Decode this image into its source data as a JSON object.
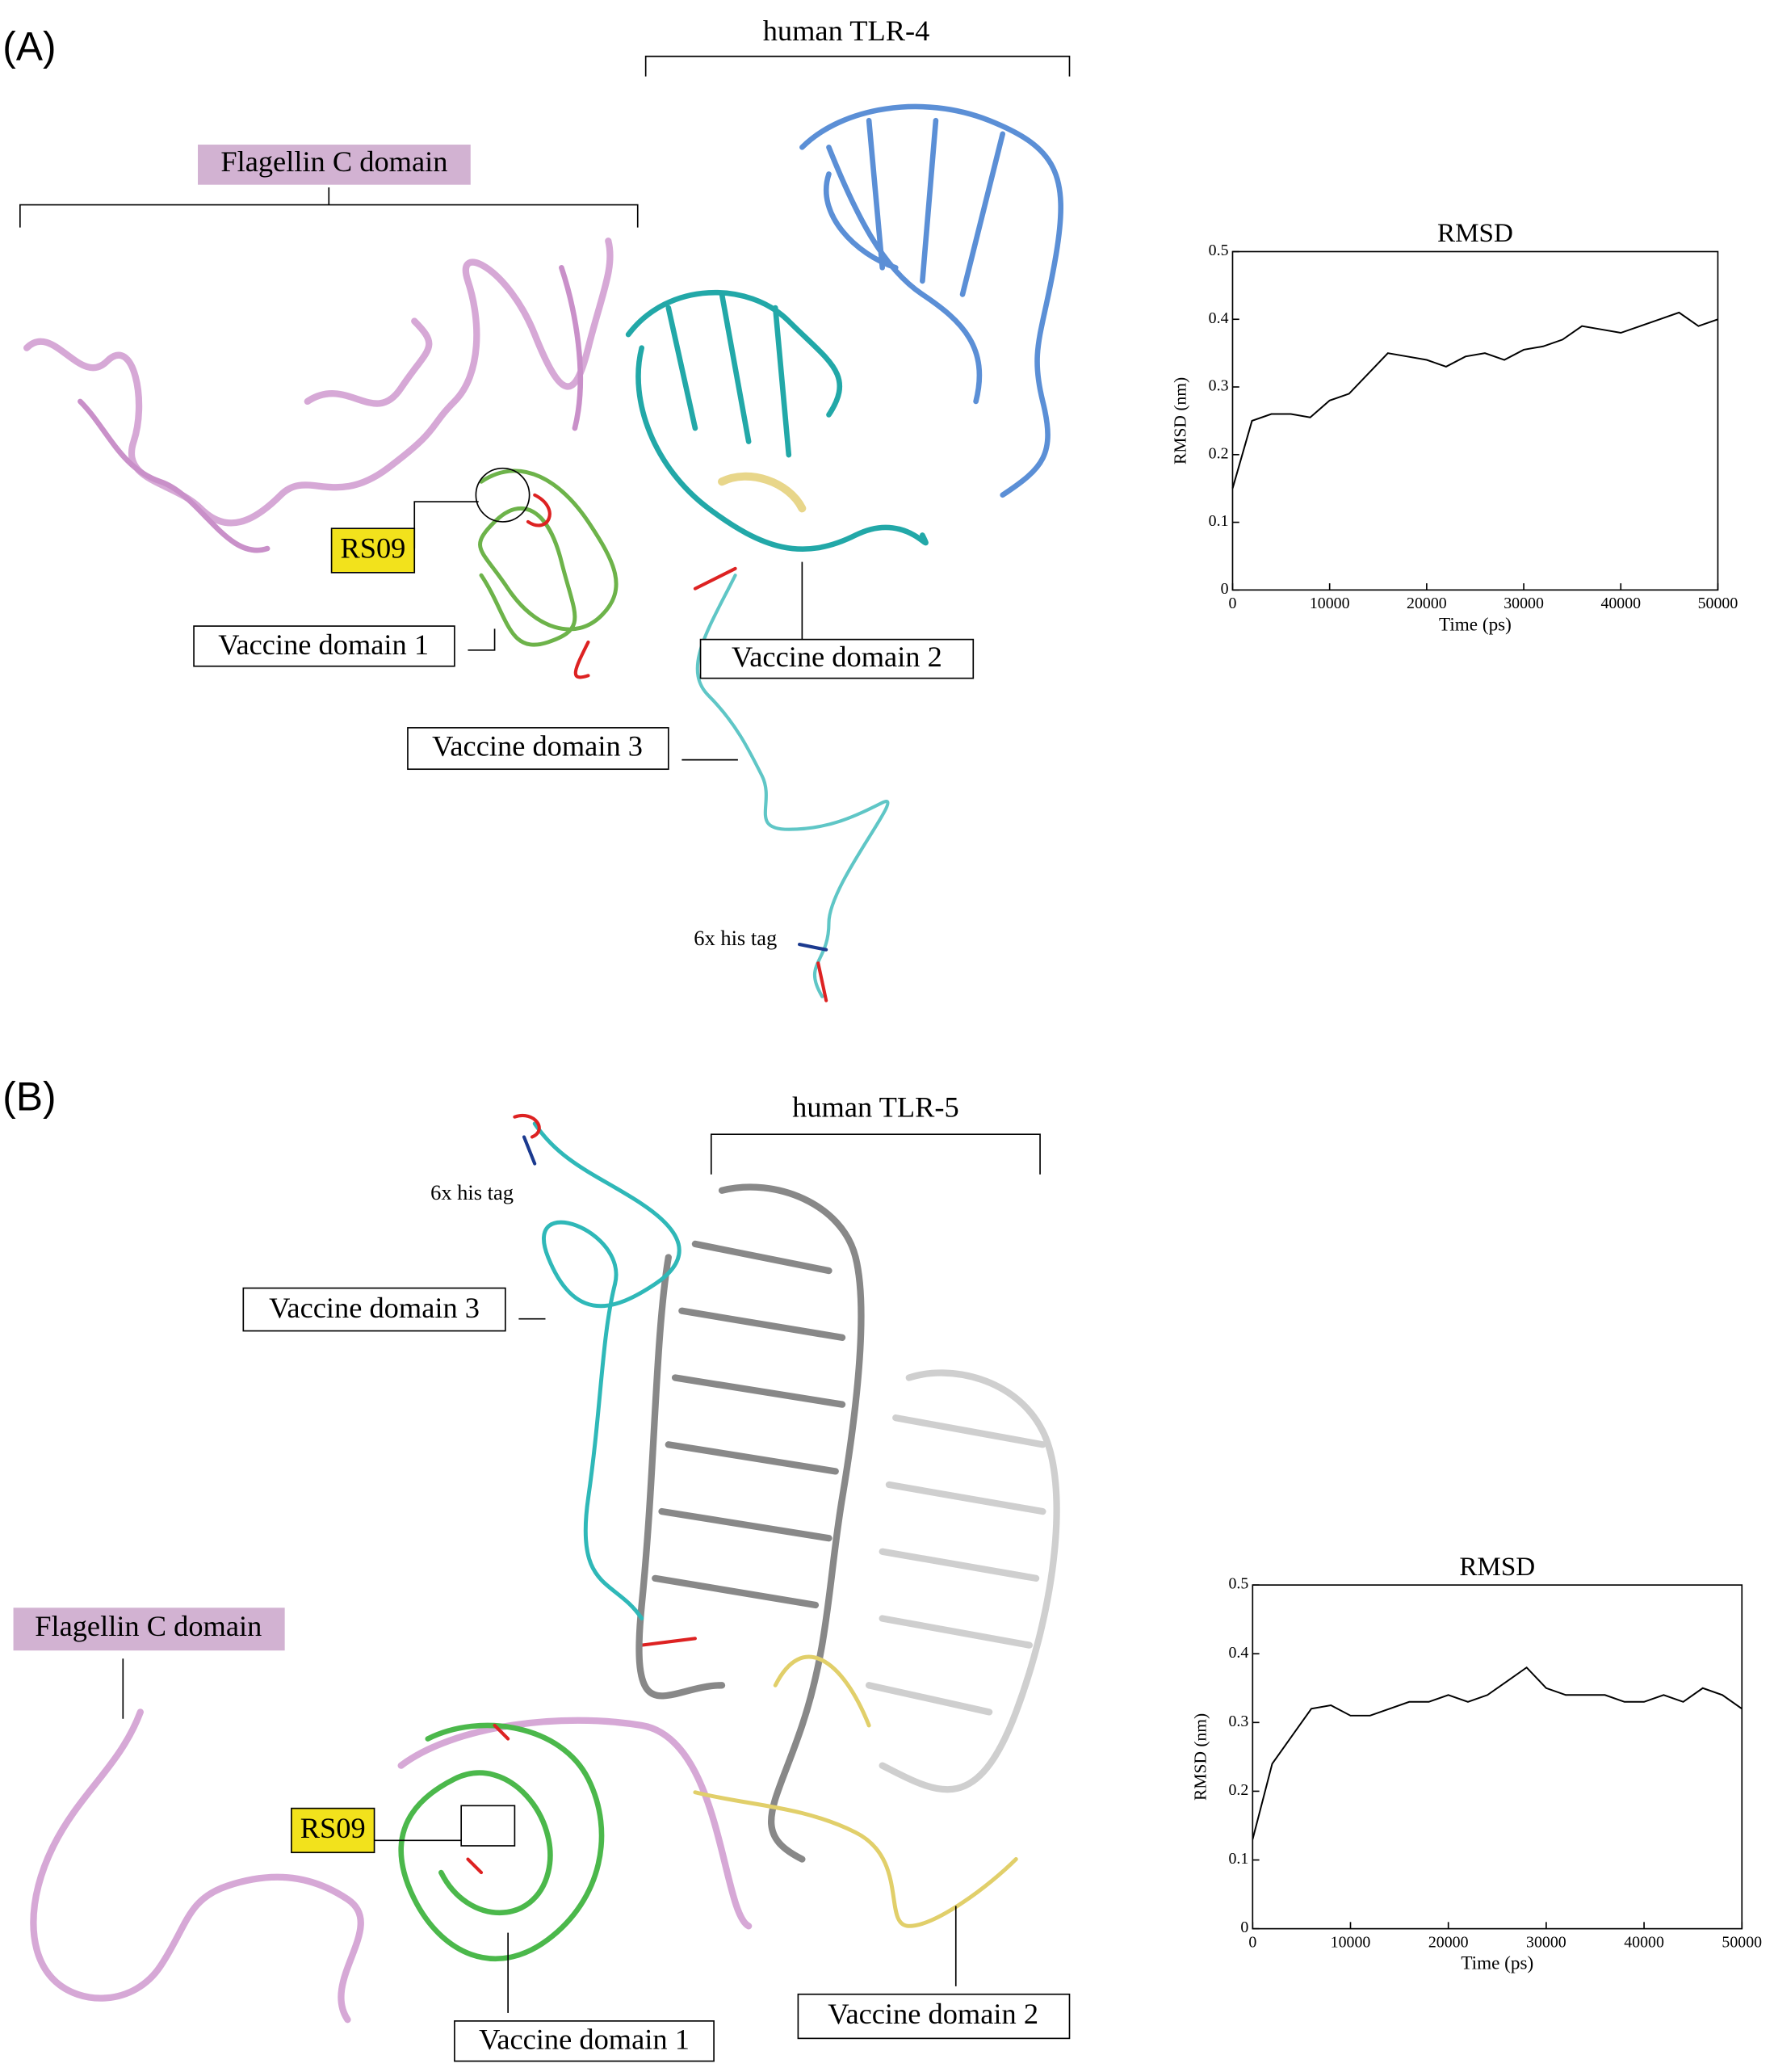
{
  "panels": [
    {
      "label": "(A)",
      "receptor": "human TLR-4",
      "flagellin": "Flagellin C domain",
      "adjuvant": "RS09",
      "domain1": "Vaccine domain 1",
      "domain2": "Vaccine domain 2",
      "domain3": "Vaccine domain 3",
      "tag": "6x his tag"
    },
    {
      "label": "(B)",
      "receptor": "human TLR-5",
      "flagellin": "Flagellin C domain",
      "adjuvant": "RS09",
      "domain1": "Vaccine domain 1",
      "domain2": "Vaccine domain 2",
      "domain3": "Vaccine domain 3",
      "tag": "6x his tag"
    }
  ],
  "chart_data": [
    {
      "type": "line",
      "title": "RMSD",
      "x_label": "Time (ps)",
      "y_label": "RMSD (nm)",
      "color": "#000000",
      "x": [
        0,
        2000,
        4000,
        6000,
        8000,
        10000,
        12000,
        14000,
        16000,
        18000,
        20000,
        22000,
        24000,
        26000,
        28000,
        30000,
        32000,
        34000,
        36000,
        38000,
        40000,
        42000,
        44000,
        46000,
        48000,
        50000
      ],
      "values": [
        0.15,
        0.25,
        0.26,
        0.26,
        0.255,
        0.28,
        0.29,
        0.32,
        0.35,
        0.345,
        0.34,
        0.33,
        0.345,
        0.35,
        0.34,
        0.355,
        0.36,
        0.37,
        0.39,
        0.385,
        0.38,
        0.39,
        0.4,
        0.41,
        0.39,
        0.4
      ],
      "xlim": [
        0,
        50000
      ],
      "xticks": [
        0,
        10000,
        20000,
        30000,
        40000,
        50000
      ],
      "ylim": [
        0,
        0.5
      ],
      "yticks": [
        0,
        0.1,
        0.2,
        0.3,
        0.4,
        0.5
      ]
    },
    {
      "type": "line",
      "title": "RMSD",
      "x_label": "Time (ps)",
      "y_label": "RMSD (nm)",
      "color": "#000000",
      "x": [
        0,
        2000,
        4000,
        6000,
        8000,
        10000,
        12000,
        14000,
        16000,
        18000,
        20000,
        22000,
        24000,
        26000,
        28000,
        30000,
        32000,
        34000,
        36000,
        38000,
        40000,
        42000,
        44000,
        46000,
        48000,
        50000
      ],
      "values": [
        0.13,
        0.24,
        0.28,
        0.32,
        0.325,
        0.31,
        0.31,
        0.32,
        0.33,
        0.33,
        0.34,
        0.33,
        0.34,
        0.36,
        0.38,
        0.35,
        0.34,
        0.34,
        0.34,
        0.33,
        0.33,
        0.34,
        0.33,
        0.35,
        0.34,
        0.32
      ],
      "xlim": [
        0,
        50000
      ],
      "xticks": [
        0,
        10000,
        20000,
        30000,
        40000,
        50000
      ],
      "ylim": [
        0,
        0.5
      ],
      "yticks": [
        0,
        0.1,
        0.2,
        0.3,
        0.4,
        0.5
      ]
    }
  ]
}
